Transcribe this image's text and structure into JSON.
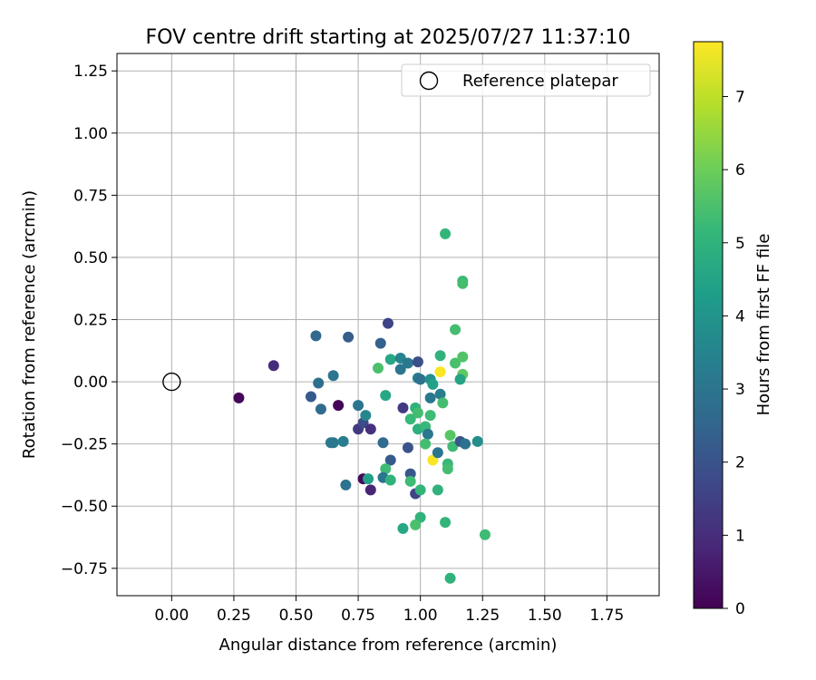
{
  "chart_data": {
    "type": "scatter",
    "title": "FOV centre drift starting at 2025/07/27 11:37:10",
    "xlabel": "Angular distance from reference (arcmin)",
    "ylabel": "Rotation from reference (arcmin)",
    "colorbar_label": "Hours from first FF file",
    "xlim": [
      -0.22,
      1.96
    ],
    "ylim": [
      -0.86,
      1.32
    ],
    "xticks": [
      "0.00",
      "0.25",
      "0.50",
      "0.75",
      "1.00",
      "1.25",
      "1.50",
      "1.75"
    ],
    "yticks": [
      "1.25",
      "1.00",
      "0.75",
      "0.50",
      "0.25",
      "0.00",
      "−0.25",
      "−0.50",
      "−0.75"
    ],
    "colorbar_range": [
      0,
      7.75
    ],
    "colorbar_ticks": [
      "0",
      "1",
      "2",
      "3",
      "4",
      "5",
      "6",
      "7"
    ],
    "colormap": "viridis",
    "grid": true,
    "legend": {
      "position": "top-right",
      "entries": [
        "Reference platepar"
      ]
    },
    "reference_point": {
      "x": 0.0,
      "y": 0.0
    },
    "points": [
      {
        "x": 0.27,
        "y": -0.065,
        "t": 0.1
      },
      {
        "x": 0.41,
        "y": 0.065,
        "t": 1.0
      },
      {
        "x": 0.67,
        "y": -0.095,
        "t": 0.1
      },
      {
        "x": 0.56,
        "y": -0.06,
        "t": 2.2
      },
      {
        "x": 0.58,
        "y": 0.185,
        "t": 2.6
      },
      {
        "x": 0.59,
        "y": -0.005,
        "t": 2.8
      },
      {
        "x": 0.6,
        "y": -0.11,
        "t": 2.7
      },
      {
        "x": 0.65,
        "y": 0.025,
        "t": 3.0
      },
      {
        "x": 0.71,
        "y": 0.18,
        "t": 2.3
      },
      {
        "x": 0.64,
        "y": -0.245,
        "t": 3.2
      },
      {
        "x": 0.65,
        "y": -0.245,
        "t": 3.1
      },
      {
        "x": 0.69,
        "y": -0.24,
        "t": 3.3
      },
      {
        "x": 0.7,
        "y": -0.415,
        "t": 2.9
      },
      {
        "x": 0.75,
        "y": -0.095,
        "t": 3.0
      },
      {
        "x": 0.75,
        "y": -0.19,
        "t": 1.3
      },
      {
        "x": 0.77,
        "y": -0.165,
        "t": 1.8
      },
      {
        "x": 0.78,
        "y": -0.135,
        "t": 3.6
      },
      {
        "x": 0.8,
        "y": -0.19,
        "t": 1.1
      },
      {
        "x": 0.77,
        "y": -0.39,
        "t": 0.2
      },
      {
        "x": 0.79,
        "y": -0.39,
        "t": 4.4
      },
      {
        "x": 0.8,
        "y": -0.435,
        "t": 0.8
      },
      {
        "x": 0.84,
        "y": 0.155,
        "t": 2.4
      },
      {
        "x": 0.83,
        "y": 0.055,
        "t": 5.5
      },
      {
        "x": 0.87,
        "y": 0.235,
        "t": 1.6
      },
      {
        "x": 0.86,
        "y": -0.055,
        "t": 4.6
      },
      {
        "x": 0.85,
        "y": -0.245,
        "t": 2.7
      },
      {
        "x": 0.88,
        "y": -0.315,
        "t": 2.2
      },
      {
        "x": 0.86,
        "y": -0.35,
        "t": 5.3
      },
      {
        "x": 0.85,
        "y": -0.385,
        "t": 3.0
      },
      {
        "x": 0.88,
        "y": -0.395,
        "t": 5.0
      },
      {
        "x": 0.88,
        "y": 0.09,
        "t": 4.6
      },
      {
        "x": 0.92,
        "y": 0.095,
        "t": 3.5
      },
      {
        "x": 0.92,
        "y": 0.05,
        "t": 3.0
      },
      {
        "x": 0.93,
        "y": -0.105,
        "t": 1.3
      },
      {
        "x": 0.95,
        "y": 0.075,
        "t": 3.1
      },
      {
        "x": 0.96,
        "y": -0.15,
        "t": 5.2
      },
      {
        "x": 0.98,
        "y": -0.105,
        "t": 5.0
      },
      {
        "x": 0.95,
        "y": -0.265,
        "t": 2.0
      },
      {
        "x": 0.96,
        "y": -0.37,
        "t": 2.1
      },
      {
        "x": 0.96,
        "y": -0.4,
        "t": 5.3
      },
      {
        "x": 0.98,
        "y": -0.45,
        "t": 1.6
      },
      {
        "x": 0.99,
        "y": 0.08,
        "t": 1.9
      },
      {
        "x": 0.99,
        "y": 0.015,
        "t": 3.3
      },
      {
        "x": 1.0,
        "y": 0.01,
        "t": 2.9
      },
      {
        "x": 0.99,
        "y": -0.125,
        "t": 5.4
      },
      {
        "x": 0.99,
        "y": -0.19,
        "t": 4.9
      },
      {
        "x": 1.02,
        "y": -0.18,
        "t": 5.2
      },
      {
        "x": 1.03,
        "y": -0.21,
        "t": 3.1
      },
      {
        "x": 1.02,
        "y": -0.25,
        "t": 5.4
      },
      {
        "x": 1.04,
        "y": -0.135,
        "t": 5.3
      },
      {
        "x": 1.04,
        "y": -0.065,
        "t": 3.1
      },
      {
        "x": 1.04,
        "y": 0.01,
        "t": 3.9
      },
      {
        "x": 1.05,
        "y": -0.01,
        "t": 4.4
      },
      {
        "x": 1.08,
        "y": 0.04,
        "t": 7.7
      },
      {
        "x": 1.05,
        "y": -0.315,
        "t": 7.7
      },
      {
        "x": 1.07,
        "y": -0.285,
        "t": 3.0
      },
      {
        "x": 1.08,
        "y": -0.05,
        "t": 3.3
      },
      {
        "x": 1.09,
        "y": -0.085,
        "t": 5.4
      },
      {
        "x": 1.08,
        "y": 0.105,
        "t": 5.0
      },
      {
        "x": 1.1,
        "y": 0.595,
        "t": 5.1
      },
      {
        "x": 1.12,
        "y": -0.215,
        "t": 5.7
      },
      {
        "x": 1.13,
        "y": -0.26,
        "t": 5.3
      },
      {
        "x": 1.11,
        "y": -0.33,
        "t": 5.2
      },
      {
        "x": 1.11,
        "y": -0.35,
        "t": 5.4
      },
      {
        "x": 1.0,
        "y": -0.435,
        "t": 5.1
      },
      {
        "x": 1.07,
        "y": -0.435,
        "t": 5.0
      },
      {
        "x": 1.0,
        "y": -0.545,
        "t": 5.0
      },
      {
        "x": 0.98,
        "y": -0.575,
        "t": 5.5
      },
      {
        "x": 0.93,
        "y": -0.59,
        "t": 4.6
      },
      {
        "x": 1.1,
        "y": -0.565,
        "t": 5.1
      },
      {
        "x": 1.12,
        "y": -0.79,
        "t": 5.0
      },
      {
        "x": 1.26,
        "y": -0.615,
        "t": 5.3
      },
      {
        "x": 1.14,
        "y": 0.21,
        "t": 5.4
      },
      {
        "x": 1.14,
        "y": 0.075,
        "t": 5.5
      },
      {
        "x": 1.17,
        "y": 0.405,
        "t": 5.2
      },
      {
        "x": 1.17,
        "y": 0.395,
        "t": 5.4
      },
      {
        "x": 1.17,
        "y": 0.1,
        "t": 5.6
      },
      {
        "x": 1.17,
        "y": 0.03,
        "t": 5.8
      },
      {
        "x": 1.16,
        "y": 0.01,
        "t": 4.5
      },
      {
        "x": 1.16,
        "y": -0.24,
        "t": 2.1
      },
      {
        "x": 1.18,
        "y": -0.25,
        "t": 2.9
      },
      {
        "x": 1.23,
        "y": -0.24,
        "t": 3.8
      }
    ]
  }
}
